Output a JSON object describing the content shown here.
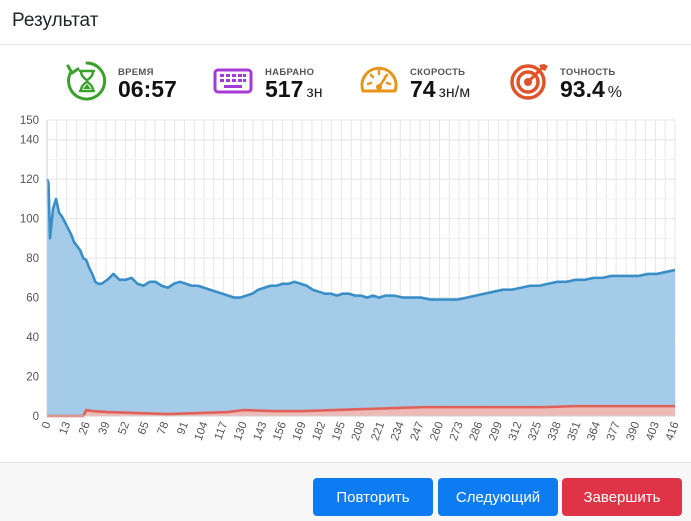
{
  "header": {
    "title": "Результат"
  },
  "stats": [
    {
      "label": "ВРЕМЯ",
      "value": "06:57",
      "unit": "",
      "icon": "hourglass-icon",
      "color": "#3aa12a"
    },
    {
      "label": "НАБРАНО",
      "value": "517",
      "unit": "зн",
      "icon": "keyboard-icon",
      "color": "#a53ad6"
    },
    {
      "label": "СКОРОСТЬ",
      "value": "74",
      "unit": "зн/м",
      "icon": "speedometer-icon",
      "color": "#e8931a"
    },
    {
      "label": "ТОЧНОСТЬ",
      "value": "93.4",
      "unit": "%",
      "icon": "target-icon",
      "color": "#e0532a"
    }
  ],
  "footer": {
    "repeat_label": "Повторить",
    "next_label": "Следующий",
    "finish_label": "Завершить"
  },
  "colors": {
    "primary": "#0d7cf2",
    "danger": "#df3448",
    "speed_line": "#3a8ec8",
    "speed_fill": "#9fc8e6",
    "error_line": "#e0605a",
    "error_fill": "#f2b8b3"
  },
  "chart_data": {
    "type": "area",
    "title": "",
    "xlabel": "",
    "ylabel": "",
    "ylim": [
      0,
      150
    ],
    "yticks": [
      0,
      20,
      40,
      60,
      80,
      100,
      120,
      140,
      150
    ],
    "xlim": [
      0,
      416
    ],
    "xticks": [
      0,
      13,
      26,
      39,
      52,
      65,
      78,
      91,
      104,
      117,
      130,
      143,
      156,
      169,
      182,
      195,
      208,
      221,
      234,
      247,
      260,
      273,
      286,
      299,
      312,
      325,
      338,
      351,
      364,
      377,
      390,
      403,
      416
    ],
    "grid": true,
    "series": [
      {
        "x": [
          0,
          1,
          2,
          4,
          6,
          8,
          10,
          12,
          14,
          16,
          18,
          20,
          22,
          24,
          26,
          28,
          30,
          32,
          34,
          36,
          40,
          44,
          48,
          52,
          56,
          60,
          64,
          68,
          72,
          76,
          80,
          84,
          88,
          92,
          96,
          100,
          104,
          108,
          112,
          116,
          120,
          124,
          128,
          132,
          136,
          140,
          144,
          148,
          152,
          156,
          160,
          164,
          168,
          172,
          176,
          180,
          184,
          188,
          192,
          196,
          200,
          204,
          208,
          212,
          216,
          220,
          224,
          230,
          236,
          242,
          248,
          254,
          260,
          266,
          272,
          278,
          284,
          290,
          296,
          302,
          308,
          314,
          320,
          326,
          332,
          338,
          344,
          350,
          356,
          362,
          368,
          374,
          380,
          386,
          392,
          398,
          404,
          410,
          416
        ],
        "values": [
          120,
          118,
          90,
          105,
          110,
          103,
          101,
          98,
          95,
          92,
          88,
          86,
          84,
          80,
          79,
          75,
          72,
          68,
          67,
          67,
          69,
          72,
          69,
          69,
          70,
          67,
          66,
          68,
          68,
          66,
          65,
          67,
          68,
          67,
          66,
          66,
          65,
          64,
          63,
          62,
          61,
          60,
          60,
          61,
          62,
          64,
          65,
          66,
          66,
          67,
          67,
          68,
          67,
          66,
          64,
          63,
          62,
          62,
          61,
          62,
          62,
          61,
          61,
          60,
          61,
          60,
          61,
          61,
          60,
          60,
          60,
          59,
          59,
          59,
          59,
          60,
          61,
          62,
          63,
          64,
          64,
          65,
          66,
          66,
          67,
          68,
          68,
          69,
          69,
          70,
          70,
          71,
          71,
          71,
          71,
          72,
          72,
          73,
          74
        ]
      },
      {
        "x": [
          0,
          20,
          24,
          26,
          30,
          40,
          60,
          80,
          100,
          120,
          130,
          150,
          170,
          190,
          210,
          230,
          250,
          270,
          290,
          310,
          330,
          350,
          370,
          390,
          416
        ],
        "values": [
          0,
          0,
          0,
          3,
          2.5,
          2,
          1.5,
          1,
          1.5,
          2,
          3,
          2.5,
          2.5,
          3,
          3.5,
          4,
          4.5,
          4.5,
          4.5,
          4.5,
          4.5,
          5,
          5,
          5,
          5
        ]
      }
    ]
  }
}
